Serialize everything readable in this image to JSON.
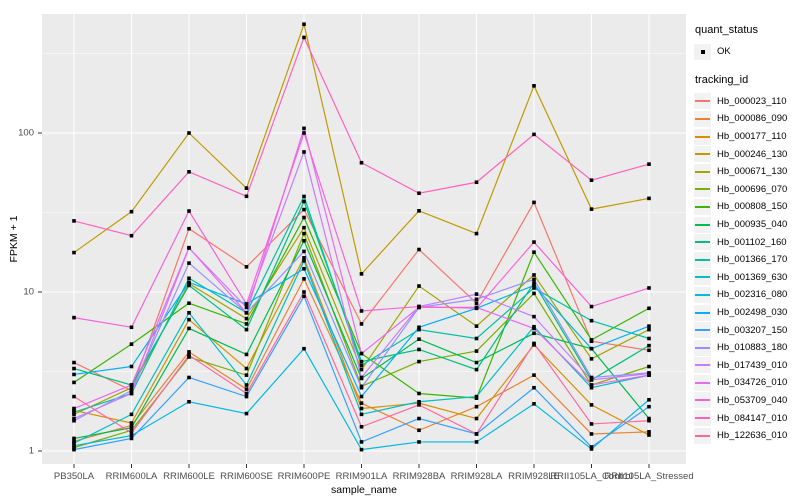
{
  "colors": {
    "page_bg": "#ffffff",
    "panel_bg": "#ebebeb",
    "grid_major": "#ffffff",
    "grid_minor": "#ffffff",
    "tick_mark": "#333333",
    "axis_text": "#4d4d4d",
    "title_text": "#000000",
    "point": "#000000",
    "legend_key_bg": "#f2f2f2"
  },
  "legend": {
    "quant_status_title": "quant_status",
    "quant_status_items": [
      {
        "label": "OK",
        "marker": "point"
      }
    ],
    "tracking_id_title": "tracking_id"
  },
  "chart_data": {
    "type": "line",
    "title": "",
    "xlabel": "sample_name",
    "ylabel": "FPKM + 1",
    "y_scale": "log10",
    "y_ticks": [
      1,
      10,
      100
    ],
    "y_minor": [
      3.1623,
      31.623,
      316.23
    ],
    "ylim": [
      1,
      566
    ],
    "grid": true,
    "legend_position": "right",
    "marker": "black-point",
    "categories": [
      "PB350LA",
      "RRIM600LA",
      "RRIM600LE",
      "RRIM600SE",
      "RRIM600PE",
      "RRIM901LA",
      "RRIM928BA",
      "RRIM928LA",
      "RRIM928LE",
      "RRII105LA_Control",
      "RRII105LA_Stressed"
    ],
    "series": [
      {
        "name": "Hb_000023_110",
        "color": "#F8766D",
        "values": [
          3.6,
          2.4,
          25.0,
          14.4,
          33.0,
          6.3,
          18.5,
          8.5,
          36.6,
          4.9,
          4.3
        ]
      },
      {
        "name": "Hb_000086_090",
        "color": "#EA8331",
        "values": [
          1.15,
          1.45,
          4.2,
          2.45,
          12.1,
          2.0,
          1.35,
          1.9,
          3.0,
          1.28,
          1.32
        ]
      },
      {
        "name": "Hb_000177_110",
        "color": "#D89000",
        "values": [
          1.8,
          1.5,
          6.7,
          3.3,
          16.4,
          1.85,
          2.0,
          1.6,
          4.65,
          1.95,
          1.26
        ]
      },
      {
        "name": "Hb_000246_130",
        "color": "#C09B00",
        "values": [
          17.7,
          32.0,
          100.0,
          45.0,
          483.0,
          13.0,
          32.4,
          23.3,
          198.0,
          33.2,
          38.8
        ]
      },
      {
        "name": "Hb_000671_130",
        "color": "#A3A500",
        "values": [
          1.7,
          2.5,
          11.3,
          6.8,
          25.4,
          3.25,
          10.9,
          6.1,
          12.8,
          3.8,
          5.8
        ]
      },
      {
        "name": "Hb_000696_070",
        "color": "#7CAE00",
        "values": [
          1.05,
          1.35,
          3.9,
          3.0,
          23.3,
          2.55,
          3.65,
          4.25,
          9.8,
          2.6,
          3.4
        ]
      },
      {
        "name": "Hb_000808_150",
        "color": "#39B600",
        "values": [
          2.7,
          4.7,
          8.5,
          6.3,
          29.4,
          4.1,
          2.3,
          2.15,
          17.8,
          5.0,
          7.9
        ]
      },
      {
        "name": "Hb_000935_040",
        "color": "#00BB4E",
        "values": [
          1.2,
          1.4,
          5.9,
          4.05,
          21.0,
          2.86,
          5.05,
          3.6,
          5.5,
          4.4,
          1.6
        ]
      },
      {
        "name": "Hb_001102_160",
        "color": "#00BF7D",
        "values": [
          3.3,
          2.6,
          11.0,
          5.8,
          37.1,
          3.65,
          4.35,
          3.25,
          11.4,
          2.8,
          4.6
        ]
      },
      {
        "name": "Hb_001366_170",
        "color": "#00C1A3",
        "values": [
          1.75,
          2.3,
          12.2,
          7.4,
          39.9,
          3.45,
          5.8,
          5.1,
          10.6,
          6.6,
          5.1
        ]
      },
      {
        "name": "Hb_001369_630",
        "color": "#00BFC4",
        "values": [
          1.12,
          1.7,
          7.4,
          2.6,
          15.7,
          1.7,
          2.04,
          2.2,
          6.05,
          2.5,
          3.0
        ]
      },
      {
        "name": "Hb_002316_080",
        "color": "#00BAE0",
        "values": [
          1.08,
          1.25,
          2.04,
          1.72,
          4.4,
          1.02,
          1.14,
          1.14,
          1.98,
          1.03,
          2.1
        ]
      },
      {
        "name": "Hb_002498_030",
        "color": "#00B0F6",
        "values": [
          3.03,
          3.4,
          11.5,
          8.4,
          14.0,
          2.2,
          6.0,
          7.9,
          11.0,
          4.4,
          6.1
        ]
      },
      {
        "name": "Hb_003207_150",
        "color": "#35A2FF",
        "values": [
          1.02,
          1.2,
          2.9,
          2.2,
          9.4,
          1.14,
          1.6,
          1.28,
          2.5,
          1.06,
          1.9
        ]
      },
      {
        "name": "Hb_010883_180",
        "color": "#9590FF",
        "values": [
          1.55,
          2.4,
          15.2,
          7.4,
          18.0,
          2.5,
          8.0,
          9.0,
          12.0,
          2.9,
          3.1
        ]
      },
      {
        "name": "Hb_017439_010",
        "color": "#C77CFF",
        "values": [
          1.6,
          2.3,
          18.9,
          8.0,
          76.0,
          2.9,
          8.1,
          9.7,
          7.0,
          2.8,
          3.07
        ]
      },
      {
        "name": "Hb_034726_010",
        "color": "#E76BF3",
        "values": [
          1.85,
          2.6,
          19.0,
          7.4,
          107.0,
          4.1,
          8.0,
          8.0,
          5.9,
          2.6,
          3.0
        ]
      },
      {
        "name": "Hb_053709_040",
        "color": "#FA62DB",
        "values": [
          6.9,
          6.0,
          32.3,
          8.4,
          100.0,
          7.6,
          8.1,
          7.9,
          20.6,
          8.1,
          10.6
        ]
      },
      {
        "name": "Hb_084147_010",
        "color": "#FF62BC",
        "values": [
          28.0,
          22.6,
          57.0,
          40.0,
          399.0,
          65.0,
          41.8,
          49.0,
          98.0,
          50.5,
          63.7
        ]
      },
      {
        "name": "Hb_122636_010",
        "color": "#FF689F",
        "values": [
          2.2,
          1.3,
          4.0,
          2.3,
          10.0,
          1.42,
          1.95,
          1.28,
          4.75,
          1.48,
          1.55
        ]
      }
    ]
  }
}
